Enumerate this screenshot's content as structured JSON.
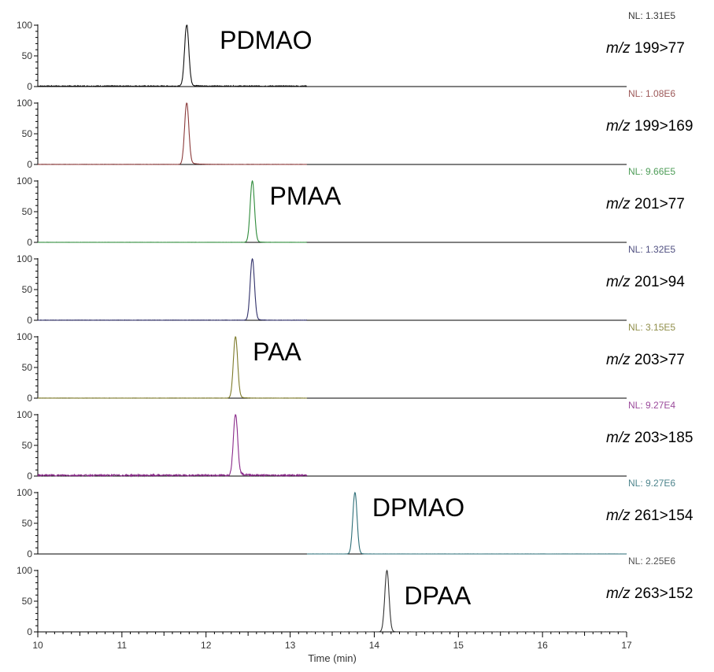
{
  "chart_data": {
    "type": "line",
    "xlabel": "Time (min)",
    "xlim": [
      10,
      17
    ],
    "x_ticks": [
      "10",
      "11",
      "12",
      "13",
      "14",
      "15",
      "16",
      "17"
    ],
    "y_ticks": [
      "0",
      "50",
      "100"
    ],
    "ylim": [
      0,
      100
    ],
    "grid": false,
    "panels": [
      {
        "name": "m/z 199>77",
        "compound": "PDMAO",
        "nl": "NL: 1.31E5",
        "color": "#111111",
        "peak_rt": 11.77,
        "peak_height": 100,
        "trace_range": [
          10.0,
          13.2
        ],
        "noise": 1.5,
        "tail": 0.06,
        "transition_prefix": "m/z",
        "transition": "199>77"
      },
      {
        "name": "m/z 199>169",
        "compound": "",
        "nl": "NL: 1.08E6",
        "color": "#8b3a3a",
        "peak_rt": 11.77,
        "peak_height": 100,
        "trace_range": [
          10.0,
          13.2
        ],
        "noise": 0.3,
        "tail": 0.07,
        "transition_prefix": "m/z",
        "transition": "199>169"
      },
      {
        "name": "m/z 201>77",
        "compound": "PMAA",
        "nl": "NL: 9.66E5",
        "color": "#2e8b3a",
        "peak_rt": 12.55,
        "peak_height": 100,
        "trace_range": [
          10.0,
          13.2
        ],
        "noise": 0.2,
        "tail": 0.04,
        "transition_prefix": "m/z",
        "transition": "201>77"
      },
      {
        "name": "m/z 201>94",
        "compound": "",
        "nl": "NL: 1.32E5",
        "color": "#30306a",
        "peak_rt": 12.55,
        "peak_height": 100,
        "trace_range": [
          10.0,
          13.2
        ],
        "noise": 0.4,
        "tail": 0.04,
        "transition_prefix": "m/z",
        "transition": "201>94"
      },
      {
        "name": "m/z 203>77",
        "compound": "PAA",
        "nl": "NL: 3.15E5",
        "color": "#7d7a2a",
        "peak_rt": 12.35,
        "peak_height": 100,
        "trace_range": [
          10.0,
          13.2
        ],
        "noise": 0.3,
        "tail": 0.05,
        "transition_prefix": "m/z",
        "transition": "203>77"
      },
      {
        "name": "m/z 203>185",
        "compound": "",
        "nl": "NL: 9.27E4",
        "color": "#8a2a8a",
        "peak_rt": 12.35,
        "peak_height": 100,
        "trace_range": [
          10.0,
          13.2
        ],
        "noise": 2.5,
        "tail": 0.08,
        "transition_prefix": "m/z",
        "transition": "203>185"
      },
      {
        "name": "m/z 261>154",
        "compound": "DPMAO",
        "nl": "NL: 9.27E6",
        "color": "#2e6f78",
        "peak_rt": 13.77,
        "peak_height": 100,
        "trace_range": [
          13.2,
          17.0
        ],
        "noise": 0.1,
        "tail": 0.03,
        "transition_prefix": "m/z",
        "transition": "261>154"
      },
      {
        "name": "m/z 263>152",
        "compound": "DPAA",
        "nl": "NL: 2.25E6",
        "color": "#333333",
        "peak_rt": 14.15,
        "peak_height": 100,
        "trace_range": [
          13.2,
          17.0
        ],
        "noise": 0.1,
        "tail": 0.03,
        "transition_prefix": "m/z",
        "transition": "263>152"
      }
    ]
  }
}
